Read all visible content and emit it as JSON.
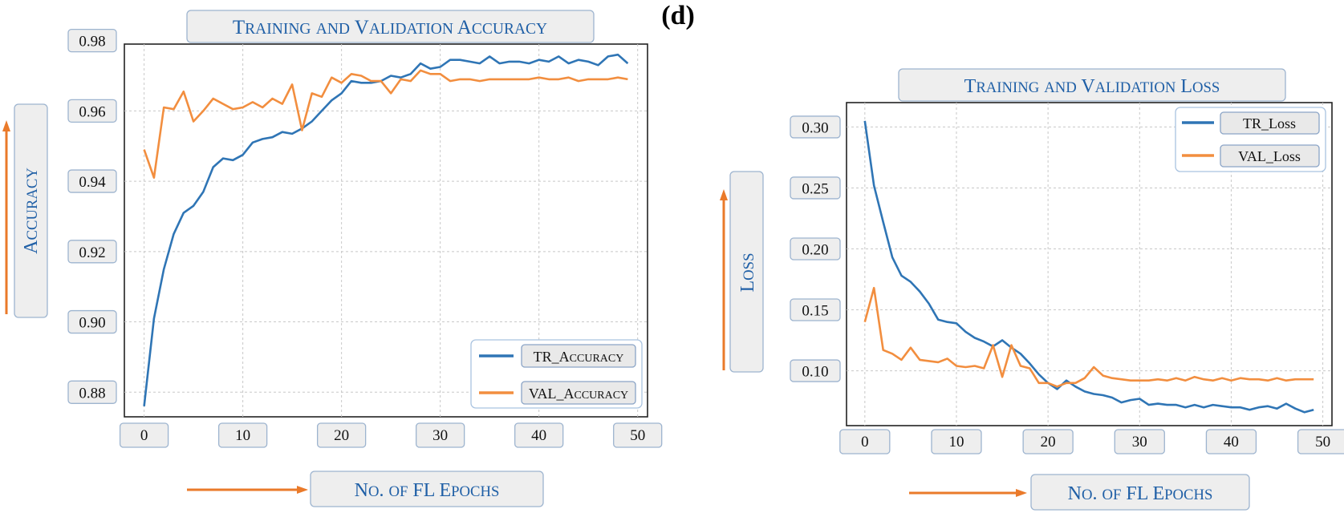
{
  "figure": {
    "panel_label": "(d)"
  },
  "colors": {
    "train": "#2f75b5",
    "val": "#f28e3f",
    "title": "#1f5fa6",
    "arrow": "#ea7a2a"
  },
  "chart_data": [
    {
      "type": "line",
      "title": "Training and Validation Accuracy",
      "xlabel": "No. of FL Epochs",
      "ylabel": "Accuracy",
      "xlim": [
        -2,
        51
      ],
      "ylim": [
        0.873,
        0.979
      ],
      "xticks": [
        0,
        10,
        20,
        30,
        40,
        50
      ],
      "yticks": [
        0.88,
        0.9,
        0.92,
        0.94,
        0.96,
        0.98
      ],
      "ytick_labels": [
        "0.88",
        "0.90",
        "0.92",
        "0.94",
        "0.96",
        "0.98"
      ],
      "legend": {
        "position": "lower-right",
        "entries": [
          "TR_Accuracy",
          "VAL_Accuracy"
        ]
      },
      "series": [
        {
          "name": "TR_Accuracy",
          "color_key": "train",
          "x": [
            0,
            1,
            2,
            3,
            4,
            5,
            6,
            7,
            8,
            9,
            10,
            11,
            12,
            13,
            14,
            15,
            16,
            17,
            18,
            19,
            20,
            21,
            22,
            23,
            24,
            25,
            26,
            27,
            28,
            29,
            30,
            31,
            32,
            33,
            34,
            35,
            36,
            37,
            38,
            39,
            40,
            41,
            42,
            43,
            44,
            45,
            46,
            47,
            48,
            49
          ],
          "y": [
            0.876,
            0.901,
            0.915,
            0.925,
            0.931,
            0.933,
            0.937,
            0.944,
            0.9465,
            0.946,
            0.9475,
            0.951,
            0.952,
            0.9525,
            0.954,
            0.9535,
            0.955,
            0.957,
            0.96,
            0.963,
            0.965,
            0.9685,
            0.968,
            0.968,
            0.9685,
            0.97,
            0.9695,
            0.9705,
            0.9735,
            0.972,
            0.9725,
            0.9745,
            0.9745,
            0.974,
            0.9735,
            0.9755,
            0.9735,
            0.974,
            0.974,
            0.9735,
            0.9745,
            0.974,
            0.9755,
            0.9735,
            0.9745,
            0.974,
            0.973,
            0.9755,
            0.976,
            0.9735
          ]
        },
        {
          "name": "VAL_Accuracy",
          "color_key": "val",
          "x": [
            0,
            1,
            2,
            3,
            4,
            5,
            6,
            7,
            8,
            9,
            10,
            11,
            12,
            13,
            14,
            15,
            16,
            17,
            18,
            19,
            20,
            21,
            22,
            23,
            24,
            25,
            26,
            27,
            28,
            29,
            30,
            31,
            32,
            33,
            34,
            35,
            36,
            37,
            38,
            39,
            40,
            41,
            42,
            43,
            44,
            45,
            46,
            47,
            48,
            49
          ],
          "y": [
            0.949,
            0.941,
            0.961,
            0.9605,
            0.9655,
            0.957,
            0.96,
            0.9635,
            0.962,
            0.9605,
            0.961,
            0.9625,
            0.961,
            0.9635,
            0.962,
            0.9675,
            0.9545,
            0.965,
            0.964,
            0.9695,
            0.968,
            0.9705,
            0.97,
            0.9685,
            0.9685,
            0.965,
            0.969,
            0.9685,
            0.9715,
            0.9705,
            0.9705,
            0.9685,
            0.969,
            0.969,
            0.9685,
            0.969,
            0.969,
            0.969,
            0.969,
            0.969,
            0.9695,
            0.969,
            0.969,
            0.9695,
            0.9685,
            0.969,
            0.969,
            0.969,
            0.9695,
            0.969
          ]
        }
      ]
    },
    {
      "type": "line",
      "title": "Training and Validation Loss",
      "xlabel": "No. of FL Epochs",
      "ylabel": "Loss",
      "xlim": [
        -2,
        51
      ],
      "ylim": [
        0.055,
        0.32
      ],
      "xticks": [
        0,
        10,
        20,
        30,
        40,
        50
      ],
      "yticks": [
        0.1,
        0.15,
        0.2,
        0.25,
        0.3
      ],
      "ytick_labels": [
        "0.10",
        "0.15",
        "0.20",
        "0.25",
        "0.30"
      ],
      "legend": {
        "position": "upper-right",
        "entries": [
          "TR_Loss",
          "VAL_Loss"
        ]
      },
      "series": [
        {
          "name": "TR_Loss",
          "color_key": "train",
          "x": [
            0,
            1,
            2,
            3,
            4,
            5,
            6,
            7,
            8,
            9,
            10,
            11,
            12,
            13,
            14,
            15,
            16,
            17,
            18,
            19,
            20,
            21,
            22,
            23,
            24,
            25,
            26,
            27,
            28,
            29,
            30,
            31,
            32,
            33,
            34,
            35,
            36,
            37,
            38,
            39,
            40,
            41,
            42,
            43,
            44,
            45,
            46,
            47,
            48,
            49
          ],
          "y": [
            0.305,
            0.252,
            0.222,
            0.193,
            0.178,
            0.173,
            0.165,
            0.155,
            0.142,
            0.14,
            0.139,
            0.132,
            0.127,
            0.124,
            0.12,
            0.125,
            0.119,
            0.114,
            0.106,
            0.097,
            0.09,
            0.085,
            0.092,
            0.087,
            0.083,
            0.081,
            0.08,
            0.078,
            0.074,
            0.076,
            0.077,
            0.072,
            0.073,
            0.072,
            0.072,
            0.07,
            0.072,
            0.07,
            0.072,
            0.071,
            0.07,
            0.07,
            0.068,
            0.07,
            0.071,
            0.069,
            0.073,
            0.069,
            0.066,
            0.068
          ]
        },
        {
          "name": "VAL_Loss",
          "color_key": "val",
          "x": [
            0,
            1,
            2,
            3,
            4,
            5,
            6,
            7,
            8,
            9,
            10,
            11,
            12,
            13,
            14,
            15,
            16,
            17,
            18,
            19,
            20,
            21,
            22,
            23,
            24,
            25,
            26,
            27,
            28,
            29,
            30,
            31,
            32,
            33,
            34,
            35,
            36,
            37,
            38,
            39,
            40,
            41,
            42,
            43,
            44,
            45,
            46,
            47,
            48,
            49
          ],
          "y": [
            0.14,
            0.168,
            0.117,
            0.114,
            0.109,
            0.119,
            0.109,
            0.108,
            0.107,
            0.11,
            0.104,
            0.103,
            0.104,
            0.102,
            0.121,
            0.095,
            0.121,
            0.104,
            0.102,
            0.09,
            0.09,
            0.087,
            0.09,
            0.09,
            0.094,
            0.103,
            0.096,
            0.094,
            0.093,
            0.092,
            0.092,
            0.092,
            0.093,
            0.092,
            0.094,
            0.092,
            0.095,
            0.093,
            0.092,
            0.094,
            0.092,
            0.094,
            0.093,
            0.093,
            0.092,
            0.094,
            0.092,
            0.093,
            0.093,
            0.093
          ]
        }
      ]
    }
  ]
}
